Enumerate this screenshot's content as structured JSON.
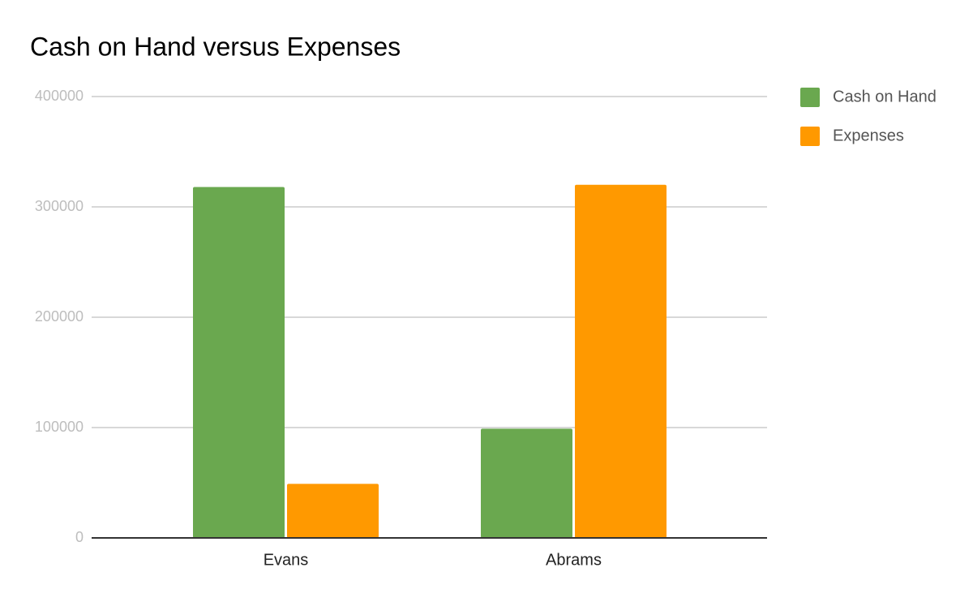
{
  "chart_data": {
    "type": "bar",
    "title": "Cash on Hand versus Expenses",
    "categories": [
      "Evans",
      "Abrams"
    ],
    "series": [
      {
        "name": "Cash on Hand",
        "color": "#6aa84f",
        "values": [
          318000,
          99000
        ]
      },
      {
        "name": "Expenses",
        "color": "#ff9900",
        "values": [
          49000,
          320000
        ]
      }
    ],
    "ylim": [
      0,
      400000
    ],
    "yticks": [
      0,
      100000,
      200000,
      300000,
      400000
    ],
    "grid": true,
    "legend": "right"
  }
}
